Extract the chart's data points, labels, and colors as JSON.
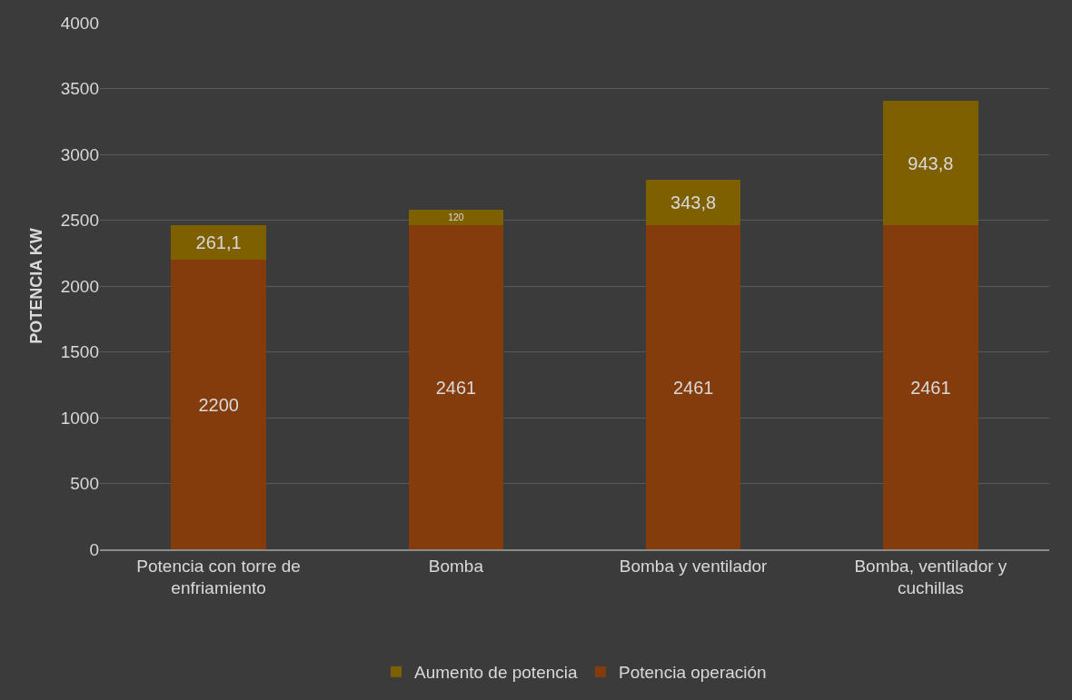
{
  "chart_data": {
    "type": "bar",
    "stacked": true,
    "ylabel": "POTENCIA KW",
    "categories": [
      "Potencia con torre de enfriamiento",
      "Bomba",
      "Bomba y ventilador",
      "Bomba, ventilador y cuchillas"
    ],
    "series": [
      {
        "name": "Potencia operación",
        "color": "#843c0c",
        "values": [
          2200,
          2461,
          2461,
          2461
        ],
        "value_labels": [
          "2200",
          "2461",
          "2461",
          "2461"
        ]
      },
      {
        "name": "Aumento de potencia",
        "color": "#7f6000",
        "values": [
          261.1,
          120,
          343.8,
          943.8
        ],
        "value_labels": [
          "261,1",
          "120",
          "343,8",
          "943,8"
        ]
      }
    ],
    "ylim": [
      0,
      4000
    ],
    "yticks": [
      0,
      500,
      1000,
      1500,
      2000,
      2500,
      3000,
      3500,
      4000
    ],
    "grid": "y",
    "legend": "bottom"
  }
}
